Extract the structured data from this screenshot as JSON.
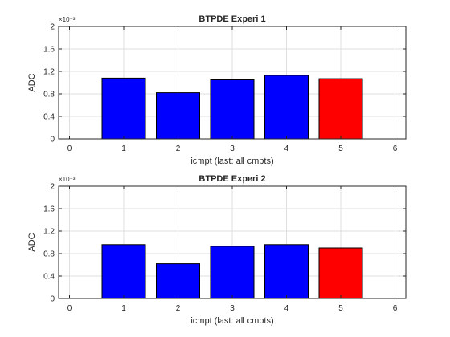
{
  "chart_data": [
    {
      "type": "bar",
      "title": "BTPDE Experi 1",
      "xlabel": "icmpt (last: all cmpts)",
      "ylabel": "ADC",
      "y_exponent_label": "×10⁻³",
      "xlim": [
        -0.2,
        6.2
      ],
      "ylim": [
        0,
        2
      ],
      "xticks": [
        0,
        1,
        2,
        3,
        4,
        5,
        6
      ],
      "yticks": [
        0,
        0.4,
        0.8,
        1.2,
        1.6,
        2
      ],
      "ytick_labels": [
        "0",
        "0.4",
        "0.8",
        "1.2",
        "1.6",
        "2"
      ],
      "grid": true,
      "legend": "none",
      "categories": [
        1,
        2,
        3,
        4,
        5
      ],
      "values": [
        1.08,
        0.82,
        1.05,
        1.13,
        1.07
      ],
      "colors": [
        "#0000ff",
        "#0000ff",
        "#0000ff",
        "#0000ff",
        "#ff0000"
      ]
    },
    {
      "type": "bar",
      "title": "BTPDE Experi 2",
      "xlabel": "icmpt (last: all cmpts)",
      "ylabel": "ADC",
      "y_exponent_label": "×10⁻³",
      "xlim": [
        -0.2,
        6.2
      ],
      "ylim": [
        0,
        2
      ],
      "xticks": [
        0,
        1,
        2,
        3,
        4,
        5,
        6
      ],
      "yticks": [
        0,
        0.4,
        0.8,
        1.2,
        1.6,
        2
      ],
      "ytick_labels": [
        "0",
        "0.4",
        "0.8",
        "1.2",
        "1.6",
        "2"
      ],
      "grid": true,
      "legend": "none",
      "categories": [
        1,
        2,
        3,
        4,
        5
      ],
      "values": [
        0.96,
        0.62,
        0.93,
        0.96,
        0.9
      ],
      "colors": [
        "#0000ff",
        "#0000ff",
        "#0000ff",
        "#0000ff",
        "#ff0000"
      ]
    }
  ]
}
